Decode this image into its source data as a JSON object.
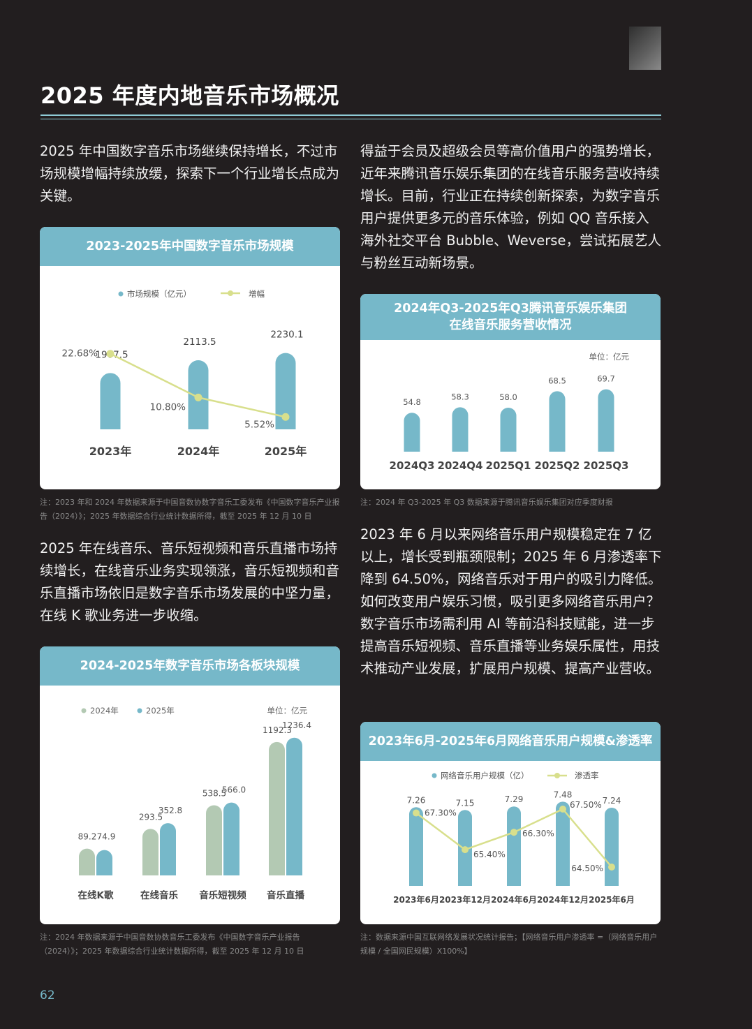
{
  "page": {
    "title": "2025 年度内地音乐市场概况",
    "number": "62"
  },
  "paragraphs": {
    "p1": "2025 年中国数字音乐市场继续保持增长，不过市场规模增幅持续放缓，探索下一个行业增长点成为关键。",
    "p2": "得益于会员及超级会员等高价值用户的强势增长，近年来腾讯音乐娱乐集团的在线音乐服务营收持续增长。目前，行业正在持续创新探索，为数字音乐用户提供更多元的音乐体验，例如 QQ 音乐接入海外社交平台 Bubble、Weverse，尝试拓展艺人与粉丝互动新场景。",
    "p3": "2025 年在线音乐、音乐短视频和音乐直播市场持续增长，在线音乐业务实现领涨，音乐短视频和音乐直播市场依旧是数字音乐市场发展的中坚力量，在线 K 歌业务进一步收缩。",
    "p4": "2023 年 6 月以来网络音乐用户规模稳定在 7 亿以上，增长受到瓶颈限制；2025 年 6 月渗透率下降到 64.50%，网络音乐对于用户的吸引力降低。如何改变用户娱乐习惯，吸引更多网络音乐用户？数字音乐市场需利用 AI 等前沿科技赋能，进一步提高音乐短视频、音乐直播等业务娱乐属性，用技术推动产业发展，扩展用户规模、提高产业营收。"
  },
  "notes": {
    "n1": "注：2023 年和 2024 年数据来源于中国音数协数字音乐工委发布《中国数字音乐产业报告（2024）》；2025 年数据综合行业统计数据所得，截至 2025 年 12 月 10 日",
    "n2": "注：2024 年 Q3-2025 年 Q3 数据来源于腾讯音乐娱乐集团对应季度财报",
    "n3": "注：2024 年数据来源于中国音数协数音乐工委发布《中国数字音乐产业报告（2024）》；2025 年数据综合行业统计数据所得，截至 2025 年 12 月 10 日",
    "n4": "注：数据来源中国互联网络发展状况统计报告；【网络音乐用户渗透率 =（网络音乐用户规模 / 全国网民规模）X100%】"
  },
  "colors": {
    "bar_blue": "#76b8c9",
    "bar_green": "#b3c9b3",
    "line_yellow": "#d8df8c",
    "header_blue": "#76b8c9"
  },
  "chart_data": [
    {
      "type": "bar",
      "title": "2023-2025年中国数字音乐市场规模",
      "categories": [
        "2023年",
        "2024年",
        "2025年"
      ],
      "series": [
        {
          "name": "市场规模（亿元）",
          "kind": "bar",
          "values": [
            1907.5,
            2113.5,
            2230.1
          ],
          "labels": [
            "1907.5",
            "2113.5",
            "2230.1"
          ]
        },
        {
          "name": "增幅",
          "kind": "line",
          "values": [
            22.68,
            10.8,
            5.52
          ],
          "labels": [
            "22.68%",
            "10.80%",
            "5.52%"
          ]
        }
      ],
      "legend": "top",
      "grid": false
    },
    {
      "type": "bar",
      "title_line1": "2024年Q3-2025年Q3腾讯音乐娱乐集团",
      "title_line2": "在线音乐服务营收情况",
      "unit": "单位：亿元",
      "categories": [
        "2024Q3",
        "2024Q4",
        "2025Q1",
        "2025Q2",
        "2025Q3"
      ],
      "values": [
        54.8,
        58.3,
        58.0,
        68.5,
        69.7
      ],
      "labels": [
        "54.8",
        "58.3",
        "58.0",
        "68.5",
        "69.7"
      ],
      "grid": false
    },
    {
      "type": "bar",
      "title": "2024-2025年数字音乐市场各板块规模",
      "unit": "单位：亿元",
      "categories": [
        "在线K歌",
        "在线音乐",
        "音乐短视频",
        "音乐直播"
      ],
      "series": [
        {
          "name": "2024年",
          "values": [
            89.2,
            293.5,
            538.5,
            1192.3
          ],
          "labels": [
            "89.2",
            "293.5",
            "538.5",
            "1192.3"
          ]
        },
        {
          "name": "2025年",
          "values": [
            74.9,
            352.8,
            566.0,
            1236.4
          ],
          "labels": [
            "74.9",
            "352.8",
            "566.0",
            "1236.4"
          ]
        }
      ],
      "legend": "top-left",
      "grid": false
    },
    {
      "type": "bar",
      "title": "2023年6月-2025年6月网络音乐用户规模&渗透率",
      "categories": [
        "2023年6月",
        "2023年12月",
        "2024年6月",
        "2024年12月",
        "2025年6月"
      ],
      "series": [
        {
          "name": "网络音乐用户规模（亿）",
          "kind": "bar",
          "values": [
            7.26,
            7.15,
            7.29,
            7.48,
            7.24
          ],
          "labels": [
            "7.26",
            "7.15",
            "7.29",
            "7.48",
            "7.24"
          ]
        },
        {
          "name": "渗透率",
          "kind": "line",
          "values": [
            67.3,
            65.4,
            66.3,
            67.5,
            64.5
          ],
          "labels": [
            "67.30%",
            "65.40%",
            "66.30%",
            "67.50%",
            "64.50%"
          ]
        }
      ],
      "legend": "top",
      "grid": false
    }
  ]
}
